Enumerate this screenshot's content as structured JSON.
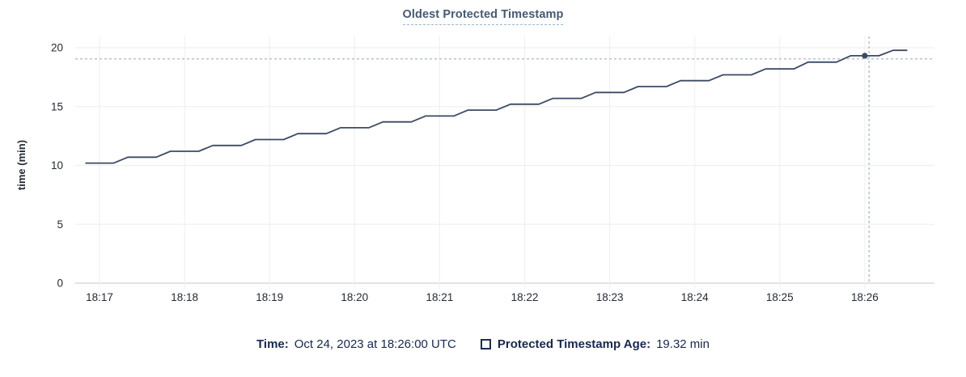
{
  "header": {
    "title": "Oldest Protected Timestamp"
  },
  "legend": {
    "time_label": "Time:",
    "time_value": "Oct 24, 2023 at 18:26:00 UTC",
    "series_swatch": "outline-square-icon",
    "series_label": "Protected Timestamp Age:",
    "series_value": "19.32 min"
  },
  "colors": {
    "title": "#475872",
    "title_underline": "#9db8cf",
    "series_line": "#3c4a63",
    "highlight_dot": "#3c4a63",
    "crosshair": "#9fb2c1",
    "gridline": "#f0f0f0",
    "axis_line": "#d2d2d2",
    "tick_text": "#242a35",
    "legend_text": "#17294d"
  },
  "chart_data": {
    "type": "line",
    "title": "Oldest Protected Timestamp",
    "xlabel": "",
    "ylabel": "time (min)",
    "ylim": [
      0,
      20
    ],
    "y_ticks": [
      0,
      5,
      10,
      15,
      20
    ],
    "x_ticks": [
      "18:17",
      "18:18",
      "18:19",
      "18:20",
      "18:21",
      "18:22",
      "18:23",
      "18:24",
      "18:25",
      "18:26"
    ],
    "grid": true,
    "legend_position": "bottom",
    "series": [
      {
        "name": "Protected Timestamp Age",
        "unit": "min",
        "points": [
          [
            "18:16:50",
            10.2
          ],
          [
            "18:17:00",
            10.2
          ],
          [
            "18:17:10",
            10.2
          ],
          [
            "18:17:20",
            10.7
          ],
          [
            "18:17:30",
            10.7
          ],
          [
            "18:17:40",
            10.7
          ],
          [
            "18:17:50",
            11.2
          ],
          [
            "18:18:00",
            11.2
          ],
          [
            "18:18:10",
            11.2
          ],
          [
            "18:18:20",
            11.7
          ],
          [
            "18:18:30",
            11.7
          ],
          [
            "18:18:40",
            11.7
          ],
          [
            "18:18:50",
            12.2
          ],
          [
            "18:19:00",
            12.2
          ],
          [
            "18:19:10",
            12.2
          ],
          [
            "18:19:20",
            12.7
          ],
          [
            "18:19:30",
            12.7
          ],
          [
            "18:19:40",
            12.7
          ],
          [
            "18:19:50",
            13.2
          ],
          [
            "18:20:00",
            13.2
          ],
          [
            "18:20:10",
            13.2
          ],
          [
            "18:20:20",
            13.7
          ],
          [
            "18:20:30",
            13.7
          ],
          [
            "18:20:40",
            13.7
          ],
          [
            "18:20:50",
            14.2
          ],
          [
            "18:21:00",
            14.2
          ],
          [
            "18:21:10",
            14.2
          ],
          [
            "18:21:20",
            14.7
          ],
          [
            "18:21:30",
            14.7
          ],
          [
            "18:21:40",
            14.7
          ],
          [
            "18:21:50",
            15.2
          ],
          [
            "18:22:00",
            15.2
          ],
          [
            "18:22:10",
            15.2
          ],
          [
            "18:22:20",
            15.7
          ],
          [
            "18:22:30",
            15.7
          ],
          [
            "18:22:40",
            15.7
          ],
          [
            "18:22:50",
            16.2
          ],
          [
            "18:23:00",
            16.2
          ],
          [
            "18:23:10",
            16.2
          ],
          [
            "18:23:20",
            16.7
          ],
          [
            "18:23:30",
            16.7
          ],
          [
            "18:23:40",
            16.7
          ],
          [
            "18:23:50",
            17.2
          ],
          [
            "18:24:00",
            17.2
          ],
          [
            "18:24:10",
            17.2
          ],
          [
            "18:24:20",
            17.7
          ],
          [
            "18:24:30",
            17.7
          ],
          [
            "18:24:40",
            17.7
          ],
          [
            "18:24:50",
            18.2
          ],
          [
            "18:25:00",
            18.2
          ],
          [
            "18:25:10",
            18.2
          ],
          [
            "18:25:20",
            18.78
          ],
          [
            "18:25:30",
            18.78
          ],
          [
            "18:25:40",
            18.78
          ],
          [
            "18:25:50",
            19.32
          ],
          [
            "18:26:00",
            19.32
          ],
          [
            "18:26:10",
            19.32
          ],
          [
            "18:26:20",
            19.78
          ],
          [
            "18:26:30",
            19.78
          ]
        ]
      }
    ],
    "highlight_point": {
      "time": "18:26:00",
      "value": 19.32
    },
    "crosshair": {
      "time": "18:26:03",
      "value": 19.05
    }
  }
}
